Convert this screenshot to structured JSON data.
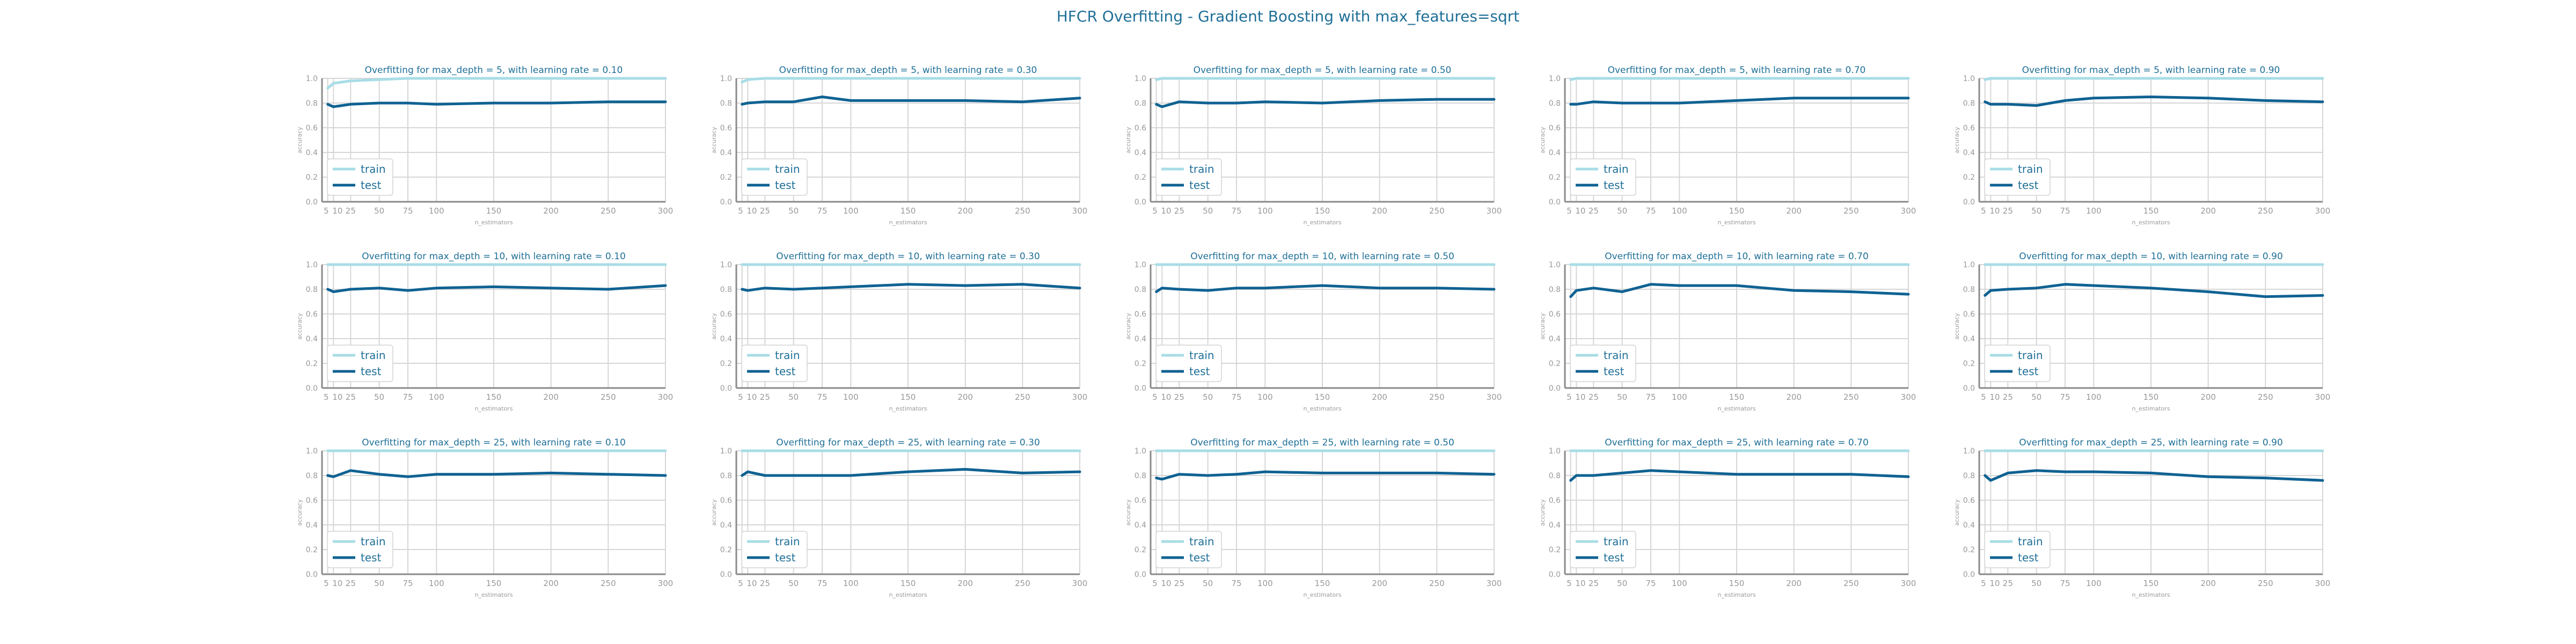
{
  "title": "HFCR Overfitting - Gradient Boosting with max_features=sqrt",
  "colors": {
    "title": "#1f6f97",
    "train": "#a8dde6",
    "test": "#0f6292",
    "grid": "#d6d6d6",
    "axis": "#8a8a8a",
    "tick": "#999999"
  },
  "chart_data": [
    {
      "type": "line",
      "title": "Overfitting for max_depth = 5, with learning rate = 0.10",
      "xlabel": "n_estimators",
      "ylabel": "accuracy",
      "x": [
        5,
        10,
        25,
        50,
        75,
        100,
        150,
        200,
        250,
        300
      ],
      "x_tick_labels": [
        "5",
        "10",
        "25",
        "50",
        "75",
        "100",
        "150",
        "200",
        "250",
        "300"
      ],
      "ylim": [
        0.0,
        1.0
      ],
      "y_ticks": [
        0.0,
        0.2,
        0.4,
        0.6,
        0.8,
        1.0
      ],
      "legend": "lower-left",
      "grid": true,
      "series": [
        {
          "name": "train",
          "values": [
            0.92,
            0.96,
            0.98,
            0.99,
            1.0,
            1.0,
            1.0,
            1.0,
            1.0,
            1.0
          ]
        },
        {
          "name": "test",
          "values": [
            0.79,
            0.77,
            0.79,
            0.8,
            0.8,
            0.79,
            0.8,
            0.8,
            0.81,
            0.81
          ]
        }
      ]
    },
    {
      "type": "line",
      "title": "Overfitting for max_depth = 5, with learning rate = 0.30",
      "xlabel": "n_estimators",
      "ylabel": "accuracy",
      "x": [
        5,
        10,
        25,
        50,
        75,
        100,
        150,
        200,
        250,
        300
      ],
      "x_tick_labels": [
        "5",
        "10",
        "25",
        "50",
        "75",
        "100",
        "150",
        "200",
        "250",
        "300"
      ],
      "ylim": [
        0.0,
        1.0
      ],
      "y_ticks": [
        0.0,
        0.2,
        0.4,
        0.6,
        0.8,
        1.0
      ],
      "legend": "lower-left",
      "grid": true,
      "series": [
        {
          "name": "train",
          "values": [
            0.97,
            0.99,
            1.0,
            1.0,
            1.0,
            1.0,
            1.0,
            1.0,
            1.0,
            1.0
          ]
        },
        {
          "name": "test",
          "values": [
            0.79,
            0.8,
            0.81,
            0.81,
            0.85,
            0.82,
            0.82,
            0.82,
            0.81,
            0.84
          ]
        }
      ]
    },
    {
      "type": "line",
      "title": "Overfitting for max_depth = 5, with learning rate = 0.50",
      "xlabel": "n_estimators",
      "ylabel": "accuracy",
      "x": [
        5,
        10,
        25,
        50,
        75,
        100,
        150,
        200,
        250,
        300
      ],
      "x_tick_labels": [
        "5",
        "10",
        "25",
        "50",
        "75",
        "100",
        "150",
        "200",
        "250",
        "300"
      ],
      "ylim": [
        0.0,
        1.0
      ],
      "y_ticks": [
        0.0,
        0.2,
        0.4,
        0.6,
        0.8,
        1.0
      ],
      "legend": "lower-left",
      "grid": true,
      "series": [
        {
          "name": "train",
          "values": [
            0.99,
            1.0,
            1.0,
            1.0,
            1.0,
            1.0,
            1.0,
            1.0,
            1.0,
            1.0
          ]
        },
        {
          "name": "test",
          "values": [
            0.79,
            0.77,
            0.81,
            0.8,
            0.8,
            0.81,
            0.8,
            0.82,
            0.83,
            0.83
          ]
        }
      ]
    },
    {
      "type": "line",
      "title": "Overfitting for max_depth = 5, with learning rate = 0.70",
      "xlabel": "n_estimators",
      "ylabel": "accuracy",
      "x": [
        5,
        10,
        25,
        50,
        75,
        100,
        150,
        200,
        250,
        300
      ],
      "x_tick_labels": [
        "5",
        "10",
        "25",
        "50",
        "75",
        "100",
        "150",
        "200",
        "250",
        "300"
      ],
      "ylim": [
        0.0,
        1.0
      ],
      "y_ticks": [
        0.0,
        0.2,
        0.4,
        0.6,
        0.8,
        1.0
      ],
      "legend": "lower-left",
      "grid": true,
      "series": [
        {
          "name": "train",
          "values": [
            0.99,
            1.0,
            1.0,
            1.0,
            1.0,
            1.0,
            1.0,
            1.0,
            1.0,
            1.0
          ]
        },
        {
          "name": "test",
          "values": [
            0.79,
            0.79,
            0.81,
            0.8,
            0.8,
            0.8,
            0.82,
            0.84,
            0.84,
            0.84
          ]
        }
      ]
    },
    {
      "type": "line",
      "title": "Overfitting for max_depth = 5, with learning rate = 0.90",
      "xlabel": "n_estimators",
      "ylabel": "accuracy",
      "x": [
        5,
        10,
        25,
        50,
        75,
        100,
        150,
        200,
        250,
        300
      ],
      "x_tick_labels": [
        "5",
        "10",
        "25",
        "50",
        "75",
        "100",
        "150",
        "200",
        "250",
        "300"
      ],
      "ylim": [
        0.0,
        1.0
      ],
      "y_ticks": [
        0.0,
        0.2,
        0.4,
        0.6,
        0.8,
        1.0
      ],
      "legend": "lower-left",
      "grid": true,
      "series": [
        {
          "name": "train",
          "values": [
            0.99,
            1.0,
            1.0,
            1.0,
            1.0,
            1.0,
            1.0,
            1.0,
            1.0,
            1.0
          ]
        },
        {
          "name": "test",
          "values": [
            0.81,
            0.79,
            0.79,
            0.78,
            0.82,
            0.84,
            0.85,
            0.84,
            0.82,
            0.81
          ]
        }
      ]
    },
    {
      "type": "line",
      "title": "Overfitting for max_depth = 10, with learning rate = 0.10",
      "xlabel": "n_estimators",
      "ylabel": "accuracy",
      "x": [
        5,
        10,
        25,
        50,
        75,
        100,
        150,
        200,
        250,
        300
      ],
      "x_tick_labels": [
        "5",
        "10",
        "25",
        "50",
        "75",
        "100",
        "150",
        "200",
        "250",
        "300"
      ],
      "ylim": [
        0.0,
        1.0
      ],
      "y_ticks": [
        0.0,
        0.2,
        0.4,
        0.6,
        0.8,
        1.0
      ],
      "legend": "lower-left",
      "grid": true,
      "series": [
        {
          "name": "train",
          "values": [
            1.0,
            1.0,
            1.0,
            1.0,
            1.0,
            1.0,
            1.0,
            1.0,
            1.0,
            1.0
          ]
        },
        {
          "name": "test",
          "values": [
            0.8,
            0.78,
            0.8,
            0.81,
            0.79,
            0.81,
            0.82,
            0.81,
            0.8,
            0.83
          ]
        }
      ]
    },
    {
      "type": "line",
      "title": "Overfitting for max_depth = 10, with learning rate = 0.30",
      "xlabel": "n_estimators",
      "ylabel": "accuracy",
      "x": [
        5,
        10,
        25,
        50,
        75,
        100,
        150,
        200,
        250,
        300
      ],
      "x_tick_labels": [
        "5",
        "10",
        "25",
        "50",
        "75",
        "100",
        "150",
        "200",
        "250",
        "300"
      ],
      "ylim": [
        0.0,
        1.0
      ],
      "y_ticks": [
        0.0,
        0.2,
        0.4,
        0.6,
        0.8,
        1.0
      ],
      "legend": "lower-left",
      "grid": true,
      "series": [
        {
          "name": "train",
          "values": [
            1.0,
            1.0,
            1.0,
            1.0,
            1.0,
            1.0,
            1.0,
            1.0,
            1.0,
            1.0
          ]
        },
        {
          "name": "test",
          "values": [
            0.8,
            0.79,
            0.81,
            0.8,
            0.81,
            0.82,
            0.84,
            0.83,
            0.84,
            0.81
          ]
        }
      ]
    },
    {
      "type": "line",
      "title": "Overfitting for max_depth = 10, with learning rate = 0.50",
      "xlabel": "n_estimators",
      "ylabel": "accuracy",
      "x": [
        5,
        10,
        25,
        50,
        75,
        100,
        150,
        200,
        250,
        300
      ],
      "x_tick_labels": [
        "5",
        "10",
        "25",
        "50",
        "75",
        "100",
        "150",
        "200",
        "250",
        "300"
      ],
      "ylim": [
        0.0,
        1.0
      ],
      "y_ticks": [
        0.0,
        0.2,
        0.4,
        0.6,
        0.8,
        1.0
      ],
      "legend": "lower-left",
      "grid": true,
      "series": [
        {
          "name": "train",
          "values": [
            1.0,
            1.0,
            1.0,
            1.0,
            1.0,
            1.0,
            1.0,
            1.0,
            1.0,
            1.0
          ]
        },
        {
          "name": "test",
          "values": [
            0.78,
            0.81,
            0.8,
            0.79,
            0.81,
            0.81,
            0.83,
            0.81,
            0.81,
            0.8
          ]
        }
      ]
    },
    {
      "type": "line",
      "title": "Overfitting for max_depth = 10, with learning rate = 0.70",
      "xlabel": "n_estimators",
      "ylabel": "accuracy",
      "x": [
        5,
        10,
        25,
        50,
        75,
        100,
        150,
        200,
        250,
        300
      ],
      "x_tick_labels": [
        "5",
        "10",
        "25",
        "50",
        "75",
        "100",
        "150",
        "200",
        "250",
        "300"
      ],
      "ylim": [
        0.0,
        1.0
      ],
      "y_ticks": [
        0.0,
        0.2,
        0.4,
        0.6,
        0.8,
        1.0
      ],
      "legend": "lower-left",
      "grid": true,
      "series": [
        {
          "name": "train",
          "values": [
            1.0,
            1.0,
            1.0,
            1.0,
            1.0,
            1.0,
            1.0,
            1.0,
            1.0,
            1.0
          ]
        },
        {
          "name": "test",
          "values": [
            0.74,
            0.79,
            0.81,
            0.78,
            0.84,
            0.83,
            0.83,
            0.79,
            0.78,
            0.76
          ]
        }
      ]
    },
    {
      "type": "line",
      "title": "Overfitting for max_depth = 10, with learning rate = 0.90",
      "xlabel": "n_estimators",
      "ylabel": "accuracy",
      "x": [
        5,
        10,
        25,
        50,
        75,
        100,
        150,
        200,
        250,
        300
      ],
      "x_tick_labels": [
        "5",
        "10",
        "25",
        "50",
        "75",
        "100",
        "150",
        "200",
        "250",
        "300"
      ],
      "ylim": [
        0.0,
        1.0
      ],
      "y_ticks": [
        0.0,
        0.2,
        0.4,
        0.6,
        0.8,
        1.0
      ],
      "legend": "lower-left",
      "grid": true,
      "series": [
        {
          "name": "train",
          "values": [
            1.0,
            1.0,
            1.0,
            1.0,
            1.0,
            1.0,
            1.0,
            1.0,
            1.0,
            1.0
          ]
        },
        {
          "name": "test",
          "values": [
            0.75,
            0.79,
            0.8,
            0.81,
            0.84,
            0.83,
            0.81,
            0.78,
            0.74,
            0.75
          ]
        }
      ]
    },
    {
      "type": "line",
      "title": "Overfitting for max_depth = 25, with learning rate = 0.10",
      "xlabel": "n_estimators",
      "ylabel": "accuracy",
      "x": [
        5,
        10,
        25,
        50,
        75,
        100,
        150,
        200,
        250,
        300
      ],
      "x_tick_labels": [
        "5",
        "10",
        "25",
        "50",
        "75",
        "100",
        "150",
        "200",
        "250",
        "300"
      ],
      "ylim": [
        0.0,
        1.0
      ],
      "y_ticks": [
        0.0,
        0.2,
        0.4,
        0.6,
        0.8,
        1.0
      ],
      "legend": "lower-left",
      "grid": true,
      "series": [
        {
          "name": "train",
          "values": [
            1.0,
            1.0,
            1.0,
            1.0,
            1.0,
            1.0,
            1.0,
            1.0,
            1.0,
            1.0
          ]
        },
        {
          "name": "test",
          "values": [
            0.8,
            0.79,
            0.84,
            0.81,
            0.79,
            0.81,
            0.81,
            0.82,
            0.81,
            0.8
          ]
        }
      ]
    },
    {
      "type": "line",
      "title": "Overfitting for max_depth = 25, with learning rate = 0.30",
      "xlabel": "n_estimators",
      "ylabel": "accuracy",
      "x": [
        5,
        10,
        25,
        50,
        75,
        100,
        150,
        200,
        250,
        300
      ],
      "x_tick_labels": [
        "5",
        "10",
        "25",
        "50",
        "75",
        "100",
        "150",
        "200",
        "250",
        "300"
      ],
      "ylim": [
        0.0,
        1.0
      ],
      "y_ticks": [
        0.0,
        0.2,
        0.4,
        0.6,
        0.8,
        1.0
      ],
      "legend": "lower-left",
      "grid": true,
      "series": [
        {
          "name": "train",
          "values": [
            1.0,
            1.0,
            1.0,
            1.0,
            1.0,
            1.0,
            1.0,
            1.0,
            1.0,
            1.0
          ]
        },
        {
          "name": "test",
          "values": [
            0.8,
            0.83,
            0.8,
            0.8,
            0.8,
            0.8,
            0.83,
            0.85,
            0.82,
            0.83
          ]
        }
      ]
    },
    {
      "type": "line",
      "title": "Overfitting for max_depth = 25, with learning rate = 0.50",
      "xlabel": "n_estimators",
      "ylabel": "accuracy",
      "x": [
        5,
        10,
        25,
        50,
        75,
        100,
        150,
        200,
        250,
        300
      ],
      "x_tick_labels": [
        "5",
        "10",
        "25",
        "50",
        "75",
        "100",
        "150",
        "200",
        "250",
        "300"
      ],
      "ylim": [
        0.0,
        1.0
      ],
      "y_ticks": [
        0.0,
        0.2,
        0.4,
        0.6,
        0.8,
        1.0
      ],
      "legend": "lower-left",
      "grid": true,
      "series": [
        {
          "name": "train",
          "values": [
            1.0,
            1.0,
            1.0,
            1.0,
            1.0,
            1.0,
            1.0,
            1.0,
            1.0,
            1.0
          ]
        },
        {
          "name": "test",
          "values": [
            0.78,
            0.77,
            0.81,
            0.8,
            0.81,
            0.83,
            0.82,
            0.82,
            0.82,
            0.81
          ]
        }
      ]
    },
    {
      "type": "line",
      "title": "Overfitting for max_depth = 25, with learning rate = 0.70",
      "xlabel": "n_estimators",
      "ylabel": "accuracy",
      "x": [
        5,
        10,
        25,
        50,
        75,
        100,
        150,
        200,
        250,
        300
      ],
      "x_tick_labels": [
        "5",
        "10",
        "25",
        "50",
        "75",
        "100",
        "150",
        "200",
        "250",
        "300"
      ],
      "ylim": [
        0.0,
        1.0
      ],
      "y_ticks": [
        0.0,
        0.2,
        0.4,
        0.6,
        0.8,
        1.0
      ],
      "legend": "lower-left",
      "grid": true,
      "series": [
        {
          "name": "train",
          "values": [
            1.0,
            1.0,
            1.0,
            1.0,
            1.0,
            1.0,
            1.0,
            1.0,
            1.0,
            1.0
          ]
        },
        {
          "name": "test",
          "values": [
            0.76,
            0.8,
            0.8,
            0.82,
            0.84,
            0.83,
            0.81,
            0.81,
            0.81,
            0.79
          ]
        }
      ]
    },
    {
      "type": "line",
      "title": "Overfitting for max_depth = 25, with learning rate = 0.90",
      "xlabel": "n_estimators",
      "ylabel": "accuracy",
      "x": [
        5,
        10,
        25,
        50,
        75,
        100,
        150,
        200,
        250,
        300
      ],
      "x_tick_labels": [
        "5",
        "10",
        "25",
        "50",
        "75",
        "100",
        "150",
        "200",
        "250",
        "300"
      ],
      "ylim": [
        0.0,
        1.0
      ],
      "y_ticks": [
        0.0,
        0.2,
        0.4,
        0.6,
        0.8,
        1.0
      ],
      "legend": "lower-left",
      "grid": true,
      "series": [
        {
          "name": "train",
          "values": [
            1.0,
            1.0,
            1.0,
            1.0,
            1.0,
            1.0,
            1.0,
            1.0,
            1.0,
            1.0
          ]
        },
        {
          "name": "test",
          "values": [
            0.8,
            0.76,
            0.82,
            0.84,
            0.83,
            0.83,
            0.82,
            0.79,
            0.78,
            0.76
          ]
        }
      ]
    }
  ]
}
